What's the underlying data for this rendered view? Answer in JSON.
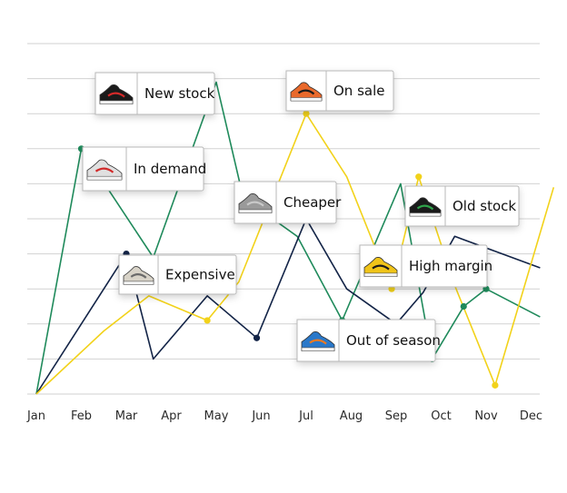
{
  "chart_data": {
    "type": "line",
    "title": "",
    "xlabel": "",
    "ylabel": "",
    "categories": [
      "Jan",
      "Feb",
      "Mar",
      "Apr",
      "May",
      "Jun",
      "Jul",
      "Aug",
      "Sep",
      "Oct",
      "Nov",
      "Dec"
    ],
    "ylim": [
      0,
      10
    ],
    "grid": true,
    "legend": "none",
    "series": [
      {
        "color": "#1f8a5b",
        "x": [
          0,
          1.0,
          2.6,
          4.0,
          4.6,
          5.8,
          6.8,
          8.1,
          8.8,
          9.5,
          10.0,
          11.2
        ],
        "y": [
          0,
          7.0,
          3.9,
          8.9,
          5.6,
          4.5,
          2.1,
          6.0,
          1.0,
          2.5,
          3.0,
          2.2
        ],
        "markers": [
          1,
          4,
          6,
          8,
          9,
          10
        ]
      },
      {
        "color": "#132447",
        "x": [
          0,
          2.0,
          2.6,
          3.8,
          4.9,
          6.0,
          6.9,
          8.0,
          8.6,
          9.3,
          11.2
        ],
        "y": [
          0,
          4.0,
          1.0,
          2.8,
          1.6,
          5.0,
          3.0,
          2.0,
          2.9,
          4.5,
          3.6
        ],
        "markers": [
          1,
          4
        ]
      },
      {
        "color": "#f2d21a",
        "x": [
          0,
          1.5,
          2.5,
          3.8,
          4.5,
          6.0,
          6.9,
          7.9,
          8.5,
          9.3,
          10.2,
          11.5
        ],
        "y": [
          0,
          1.8,
          2.8,
          2.1,
          3.2,
          8.0,
          6.2,
          3.0,
          6.2,
          3.1,
          0.25,
          5.9
        ],
        "markers": [
          3,
          5,
          7,
          8,
          10
        ]
      }
    ],
    "annotations": [
      {
        "label": "New stock",
        "shoe": "black-red sneaker",
        "bg": "#ffffff",
        "shoeColor": "#1b1b1b",
        "accent": "#d52a2a"
      },
      {
        "label": "On sale",
        "shoe": "orange high-top",
        "bg": "#ffffff",
        "shoeColor": "#e9692b",
        "accent": "#1b1b1b"
      },
      {
        "label": "In demand",
        "shoe": "red-blue runner",
        "bg": "#ffffff",
        "shoeColor": "#e0e0e0",
        "accent": "#d12a2a"
      },
      {
        "label": "Cheaper",
        "shoe": "grey runner",
        "bg": "#ffffff",
        "shoeColor": "#9a9a9a",
        "accent": "#c9c9c9"
      },
      {
        "label": "Old stock",
        "shoe": "black-green trainer",
        "bg": "#ffffff",
        "shoeColor": "#1a1a1a",
        "accent": "#2fa34a"
      },
      {
        "label": "Expensive",
        "shoe": "beige runner",
        "bg": "#ffffff",
        "shoeColor": "#d8d3c8",
        "accent": "#6a6a6a"
      },
      {
        "label": "High margin",
        "shoe": "yellow-black trainer",
        "bg": "#ffffff",
        "shoeColor": "#f0c419",
        "accent": "#1a1a1a"
      },
      {
        "label": "Out of season",
        "shoe": "blue-orange runner",
        "bg": "#ffffff",
        "shoeColor": "#2a78c9",
        "accent": "#f07a20"
      }
    ]
  },
  "colors": {
    "grid": "#d2d2d2",
    "axis_text": "#2b2b2b",
    "card_border": "#b8b8b8"
  }
}
